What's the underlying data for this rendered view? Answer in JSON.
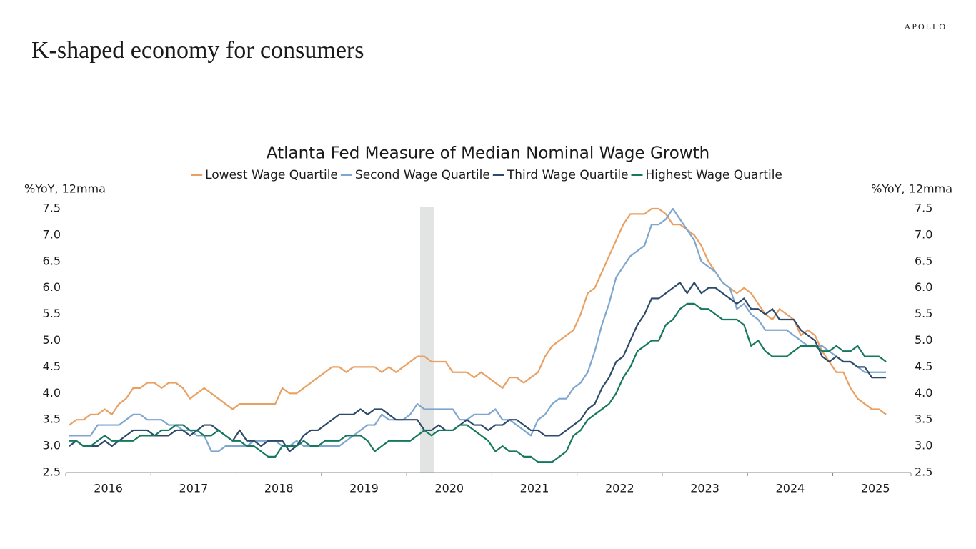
{
  "page_title": "K-shaped economy for consumers",
  "brand": "APOLLO",
  "chart_data": {
    "type": "line",
    "title": "Atlanta Fed Measure of Median Nominal Wage Growth",
    "ylabel": "%YoY, 12mma",
    "y2label": "%YoY, 12mma",
    "categories": [
      null,
      null,
      null,
      null,
      null,
      null,
      "2016",
      null,
      null,
      null,
      null,
      null,
      null,
      null,
      null,
      null,
      null,
      null,
      "2017",
      null,
      null,
      null,
      null,
      null,
      null,
      null,
      null,
      null,
      null,
      null,
      "2018",
      null,
      null,
      null,
      null,
      null,
      null,
      null,
      null,
      null,
      null,
      null,
      "2019",
      null,
      null,
      null,
      null,
      null,
      null,
      null,
      null,
      null,
      null,
      null,
      "2020",
      null,
      null,
      null,
      null,
      null,
      null,
      null,
      null,
      null,
      null,
      null,
      "2021",
      null,
      null,
      null,
      null,
      null,
      null,
      null,
      null,
      null,
      null,
      null,
      "2022",
      null,
      null,
      null,
      null,
      null,
      null,
      null,
      null,
      null,
      null,
      null,
      "2023",
      null,
      null,
      null,
      null,
      null,
      null,
      null,
      null,
      null,
      null,
      null,
      "2024",
      null,
      null,
      null,
      null,
      null,
      null,
      null,
      null,
      null,
      null,
      null,
      "2025",
      null
    ],
    "ylim": [
      2.5,
      7.5
    ],
    "y2lim": [
      2.5,
      7.5
    ],
    "yticks": [
      {
        "value": 2.5,
        "label": "2.5"
      },
      {
        "value": 3,
        "label": "3.0"
      },
      {
        "value": 3.5,
        "label": "3.5"
      },
      {
        "value": 4,
        "label": "4.0"
      },
      {
        "value": 4.5,
        "label": "4.5"
      },
      {
        "value": 5,
        "label": "5.0"
      },
      {
        "value": 5.5,
        "label": "5.5"
      },
      {
        "value": 6,
        "label": "6.0"
      },
      {
        "value": 6.5,
        "label": "6.5"
      },
      {
        "value": 7,
        "label": "7.0"
      },
      {
        "value": 7.5,
        "label": "7.5"
      }
    ],
    "y2ticks": [
      {
        "value": 2.5,
        "label": "2.5"
      },
      {
        "value": 3,
        "label": "3.0"
      },
      {
        "value": 3.5,
        "label": "3.5"
      },
      {
        "value": 4,
        "label": "4.0"
      },
      {
        "value": 4.5,
        "label": "4.5"
      },
      {
        "value": 5,
        "label": "5.0"
      },
      {
        "value": 5.5,
        "label": "5.5"
      },
      {
        "value": 6,
        "label": "6.0"
      },
      {
        "value": 6.5,
        "label": "6.5"
      },
      {
        "value": 7,
        "label": "7.0"
      },
      {
        "value": 7.5,
        "label": "7.5"
      }
    ],
    "grid": false,
    "series": [
      {
        "name": "Lowest Wage Quartile",
        "color": "#e9a163",
        "values": [
          3.4,
          3.5,
          3.5,
          3.6,
          3.6,
          3.7,
          3.6,
          3.8,
          3.9,
          4.1,
          4.1,
          4.2,
          4.2,
          4.1,
          4.2,
          4.2,
          4.1,
          3.9,
          4.0,
          4.1,
          4.0,
          3.9,
          3.8,
          3.7,
          3.8,
          3.8,
          3.8,
          3.8,
          3.8,
          3.8,
          4.1,
          4.0,
          4.0,
          4.1,
          4.2,
          4.3,
          4.4,
          4.5,
          4.5,
          4.4,
          4.5,
          4.5,
          4.5,
          4.5,
          4.4,
          4.5,
          4.4,
          4.5,
          4.6,
          4.7,
          4.7,
          4.6,
          4.6,
          4.6,
          4.4,
          4.4,
          4.4,
          4.3,
          4.4,
          4.3,
          4.2,
          4.1,
          4.3,
          4.3,
          4.2,
          4.3,
          4.4,
          4.7,
          4.9,
          5.0,
          5.1,
          5.2,
          5.5,
          5.9,
          6.0,
          6.3,
          6.6,
          6.9,
          7.2,
          7.4,
          7.4,
          7.4,
          7.5,
          7.5,
          7.4,
          7.2,
          7.2,
          7.1,
          7.0,
          6.8,
          6.5,
          6.3,
          6.1,
          6.0,
          5.9,
          6.0,
          5.9,
          5.7,
          5.5,
          5.4,
          5.6,
          5.5,
          5.4,
          5.1,
          5.2,
          5.1,
          4.8,
          4.6,
          4.4,
          4.4,
          4.1,
          3.9,
          3.8,
          3.7,
          3.7,
          3.6
        ]
      },
      {
        "name": "Second Wage Quartile",
        "color": "#7fa6cf",
        "values": [
          3.2,
          3.2,
          3.2,
          3.2,
          3.4,
          3.4,
          3.4,
          3.4,
          3.5,
          3.6,
          3.6,
          3.5,
          3.5,
          3.5,
          3.4,
          3.4,
          3.3,
          3.3,
          3.2,
          3.2,
          2.9,
          2.9,
          3.0,
          3.0,
          3.0,
          3.0,
          3.1,
          3.1,
          3.1,
          3.1,
          3.0,
          3.0,
          3.1,
          3.0,
          3.0,
          3.0,
          3.0,
          3.0,
          3.0,
          3.1,
          3.2,
          3.3,
          3.4,
          3.4,
          3.6,
          3.5,
          3.5,
          3.5,
          3.6,
          3.8,
          3.7,
          3.7,
          3.7,
          3.7,
          3.7,
          3.5,
          3.5,
          3.6,
          3.6,
          3.6,
          3.7,
          3.5,
          3.5,
          3.4,
          3.3,
          3.2,
          3.5,
          3.6,
          3.8,
          3.9,
          3.9,
          4.1,
          4.2,
          4.4,
          4.8,
          5.3,
          5.7,
          6.2,
          6.4,
          6.6,
          6.7,
          6.8,
          7.2,
          7.2,
          7.3,
          7.5,
          7.3,
          7.1,
          6.9,
          6.5,
          6.4,
          6.3,
          6.1,
          6.0,
          5.6,
          5.7,
          5.5,
          5.4,
          5.2,
          5.2,
          5.2,
          5.2,
          5.1,
          5.0,
          4.9,
          4.9,
          4.9,
          4.8,
          4.7,
          4.6,
          4.6,
          4.5,
          4.4,
          4.4,
          4.4,
          4.4
        ]
      },
      {
        "name": "Third Wage Quartile",
        "color": "#2e4a6b",
        "values": [
          3.0,
          3.1,
          3.0,
          3.0,
          3.0,
          3.1,
          3.0,
          3.1,
          3.2,
          3.3,
          3.3,
          3.3,
          3.2,
          3.2,
          3.2,
          3.3,
          3.3,
          3.2,
          3.3,
          3.4,
          3.4,
          3.3,
          3.2,
          3.1,
          3.3,
          3.1,
          3.1,
          3.0,
          3.1,
          3.1,
          3.1,
          2.9,
          3.0,
          3.2,
          3.3,
          3.3,
          3.4,
          3.5,
          3.6,
          3.6,
          3.6,
          3.7,
          3.6,
          3.7,
          3.7,
          3.6,
          3.5,
          3.5,
          3.5,
          3.5,
          3.3,
          3.3,
          3.4,
          3.3,
          3.3,
          3.4,
          3.5,
          3.4,
          3.4,
          3.3,
          3.4,
          3.4,
          3.5,
          3.5,
          3.4,
          3.3,
          3.3,
          3.2,
          3.2,
          3.2,
          3.3,
          3.4,
          3.5,
          3.7,
          3.8,
          4.1,
          4.3,
          4.6,
          4.7,
          5.0,
          5.3,
          5.5,
          5.8,
          5.8,
          5.9,
          6.0,
          6.1,
          5.9,
          6.1,
          5.9,
          6.0,
          6.0,
          5.9,
          5.8,
          5.7,
          5.8,
          5.6,
          5.6,
          5.5,
          5.6,
          5.4,
          5.4,
          5.4,
          5.2,
          5.1,
          5.0,
          4.7,
          4.6,
          4.7,
          4.6,
          4.6,
          4.5,
          4.5,
          4.3,
          4.3,
          4.3
        ]
      },
      {
        "name": "Highest Wage Quartile",
        "color": "#16785c",
        "values": [
          3.1,
          3.1,
          3.0,
          3.0,
          3.1,
          3.2,
          3.1,
          3.1,
          3.1,
          3.1,
          3.2,
          3.2,
          3.2,
          3.3,
          3.3,
          3.4,
          3.4,
          3.3,
          3.3,
          3.2,
          3.2,
          3.3,
          3.2,
          3.1,
          3.1,
          3.0,
          3.0,
          2.9,
          2.8,
          2.8,
          3.0,
          3.0,
          3.0,
          3.1,
          3.0,
          3.0,
          3.1,
          3.1,
          3.1,
          3.2,
          3.2,
          3.2,
          3.1,
          2.9,
          3.0,
          3.1,
          3.1,
          3.1,
          3.1,
          3.2,
          3.3,
          3.2,
          3.3,
          3.3,
          3.3,
          3.4,
          3.4,
          3.3,
          3.2,
          3.1,
          2.9,
          3.0,
          2.9,
          2.9,
          2.8,
          2.8,
          2.7,
          2.7,
          2.7,
          2.8,
          2.9,
          3.2,
          3.3,
          3.5,
          3.6,
          3.7,
          3.8,
          4.0,
          4.3,
          4.5,
          4.8,
          4.9,
          5.0,
          5.0,
          5.3,
          5.4,
          5.6,
          5.7,
          5.7,
          5.6,
          5.6,
          5.5,
          5.4,
          5.4,
          5.4,
          5.3,
          4.9,
          5.0,
          4.8,
          4.7,
          4.7,
          4.7,
          4.8,
          4.9,
          4.9,
          4.9,
          4.8,
          4.8,
          4.9,
          4.8,
          4.8,
          4.9,
          4.7,
          4.7,
          4.7,
          4.6
        ]
      }
    ]
  }
}
